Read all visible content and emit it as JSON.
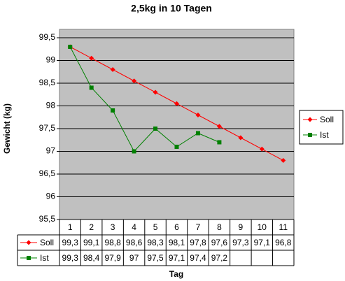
{
  "chart_data": {
    "type": "line",
    "title": "2,5kg in 10 Tagen",
    "x_label": "Tag",
    "y_label": "Gewicht (kg)",
    "categories": [
      "1",
      "2",
      "3",
      "4",
      "5",
      "6",
      "7",
      "8",
      "9",
      "10",
      "11"
    ],
    "series": [
      {
        "name": "Soll",
        "color": "#ff0000",
        "marker": "diamond",
        "values": [
          99.3,
          99.05,
          98.8,
          98.55,
          98.3,
          98.05,
          97.8,
          97.55,
          97.3,
          97.05,
          96.8
        ],
        "value_labels": [
          "99,3",
          "99,1",
          "98,8",
          "98,6",
          "98,3",
          "98,1",
          "97,8",
          "97,6",
          "97,3",
          "97,1",
          "96,8"
        ]
      },
      {
        "name": "Ist",
        "color": "#008000",
        "marker": "square",
        "values": [
          99.3,
          98.4,
          97.9,
          97,
          97.5,
          97.1,
          97.4,
          97.2,
          null,
          null,
          null
        ],
        "value_labels": [
          "99,3",
          "98,4",
          "97,9",
          "97",
          "97,5",
          "97,1",
          "97,4",
          "97,2",
          null,
          null,
          null
        ]
      }
    ],
    "ylim": [
      95.5,
      99.5
    ],
    "yticks": [
      {
        "value": 95.5,
        "label": "95,5"
      },
      96,
      {
        "value": 96.5,
        "label": "96,5"
      },
      97,
      {
        "value": 97.5,
        "label": "97,5"
      },
      98,
      {
        "value": 98.5,
        "label": "98,5"
      },
      99,
      {
        "value": 99.5,
        "label": "99,5"
      }
    ],
    "grid": true,
    "legend": "right",
    "data_table": true
  }
}
